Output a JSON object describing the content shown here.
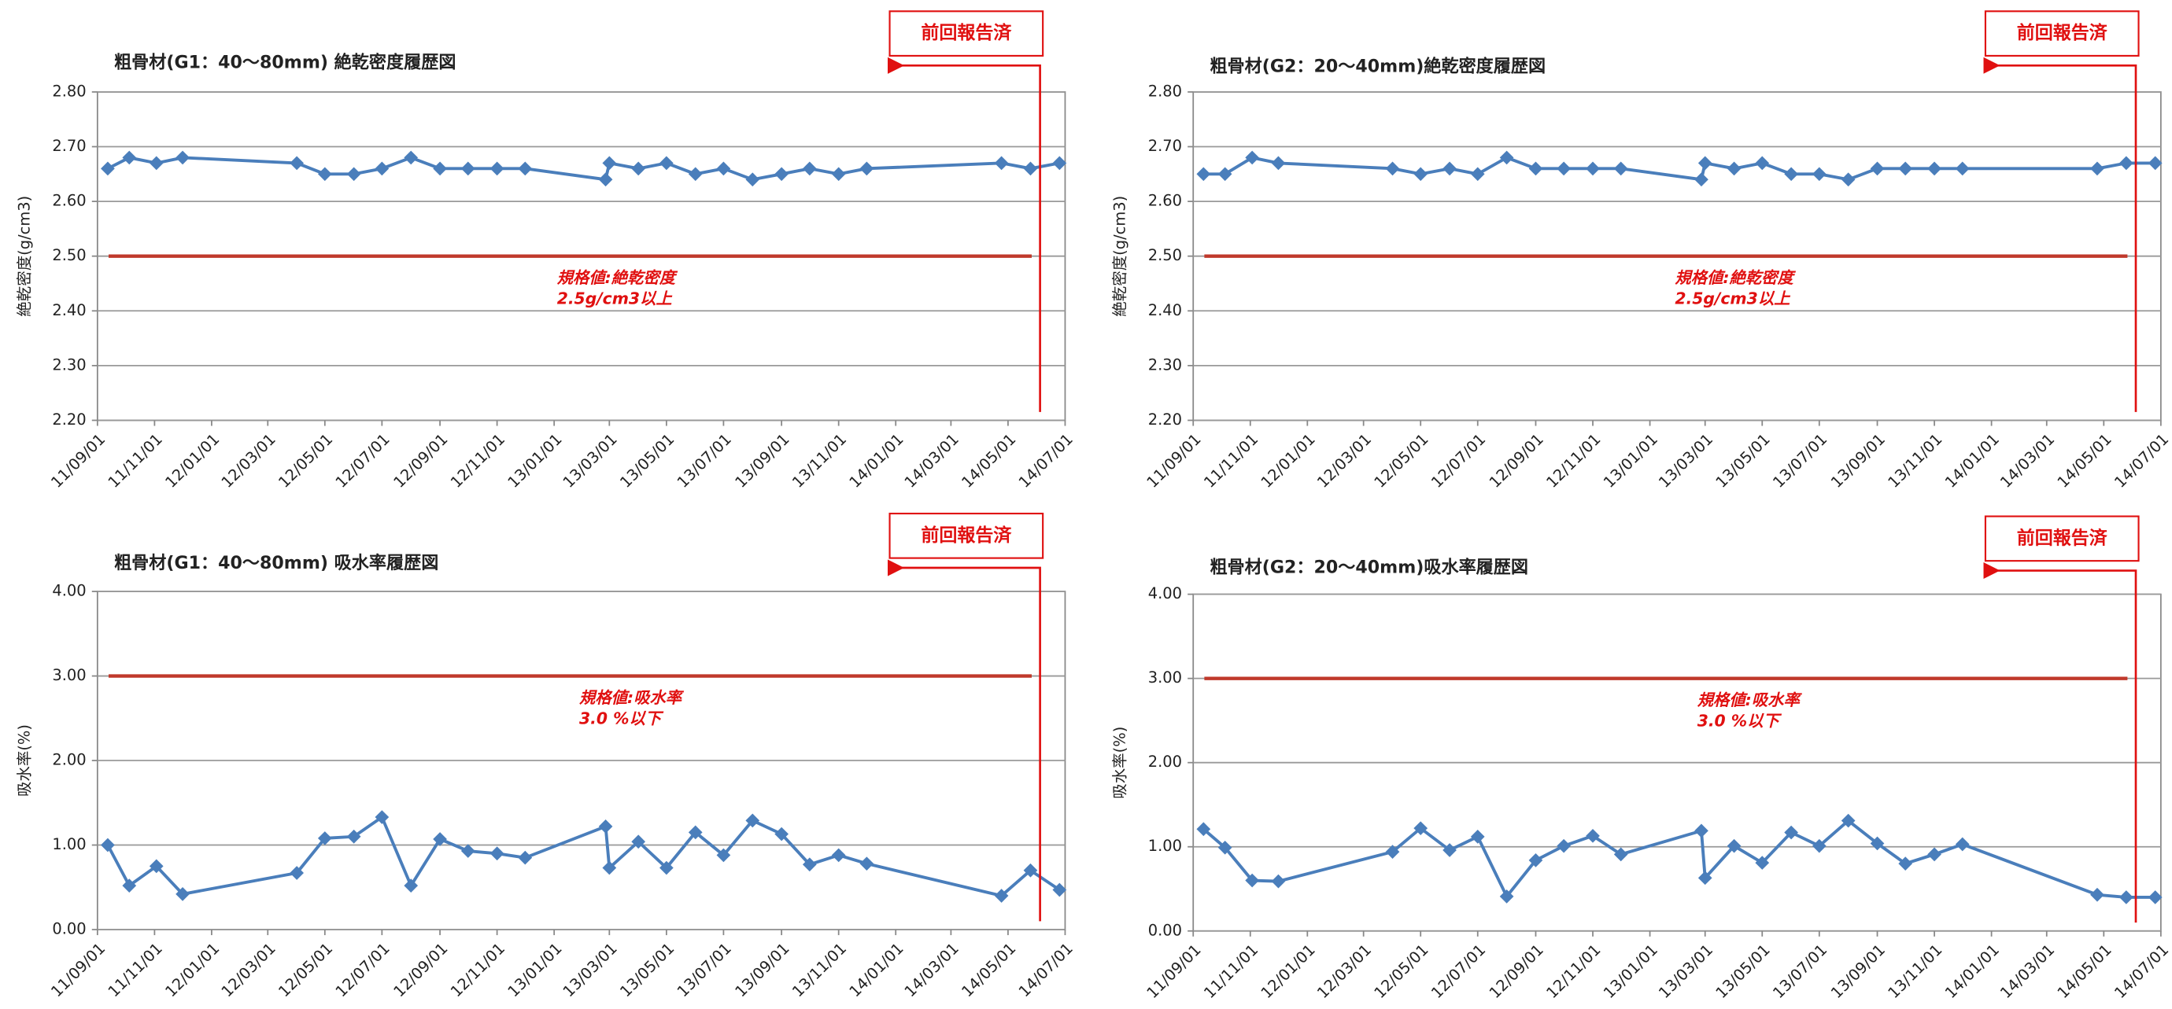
{
  "chart_data": [
    {
      "type": "line",
      "title": "粗骨材(G1：40～80mm) 絶乾密度履歴図",
      "ylabel": "絶乾密度(g/cm3)",
      "x": [
        "2011-09-12",
        "2011-10-05",
        "2011-11-03",
        "2011-12-01",
        "2012-04-01",
        "2012-05-01",
        "2012-06-01",
        "2012-07-01",
        "2012-08-01",
        "2012-09-01",
        "2012-10-01",
        "2012-11-01",
        "2012-12-01",
        "2013-02-25",
        "2013-03-01",
        "2013-04-01",
        "2013-05-01",
        "2013-06-01",
        "2013-07-01",
        "2013-08-01",
        "2013-09-01",
        "2013-10-01",
        "2013-11-01",
        "2013-12-01",
        "2014-04-24",
        "2014-05-25",
        "2014-06-25"
      ],
      "series": [
        {
          "color": "#4a7ebb",
          "values": [
            2.66,
            2.68,
            2.67,
            2.68,
            2.67,
            2.65,
            2.65,
            2.66,
            2.68,
            2.66,
            2.66,
            2.66,
            2.66,
            2.64,
            2.67,
            2.66,
            2.67,
            2.65,
            2.66,
            2.64,
            2.65,
            2.66,
            2.65,
            2.66,
            2.67,
            2.66,
            2.67
          ]
        }
      ],
      "xlim": [
        "2011-09-01",
        "2014-07-01"
      ],
      "xticks": [
        {
          "value": "2011-09-01",
          "label": "11/09/01"
        },
        {
          "value": "2011-11-01",
          "label": "11/11/01"
        },
        {
          "value": "2012-01-01",
          "label": "12/01/01"
        },
        {
          "value": "2012-03-01",
          "label": "12/03/01"
        },
        {
          "value": "2012-05-01",
          "label": "12/05/01"
        },
        {
          "value": "2012-07-01",
          "label": "12/07/01"
        },
        {
          "value": "2012-09-01",
          "label": "12/09/01"
        },
        {
          "value": "2012-11-01",
          "label": "12/11/01"
        },
        {
          "value": "2013-01-01",
          "label": "13/01/01"
        },
        {
          "value": "2013-03-01",
          "label": "13/03/01"
        },
        {
          "value": "2013-05-01",
          "label": "13/05/01"
        },
        {
          "value": "2013-07-01",
          "label": "13/07/01"
        },
        {
          "value": "2013-09-01",
          "label": "13/09/01"
        },
        {
          "value": "2013-11-01",
          "label": "13/11/01"
        },
        {
          "value": "2014-01-01",
          "label": "14/01/01"
        },
        {
          "value": "2014-03-01",
          "label": "14/03/01"
        },
        {
          "value": "2014-05-01",
          "label": "14/05/01"
        },
        {
          "value": "2014-07-01",
          "label": "14/07/01"
        }
      ],
      "ylim": [
        2.2,
        2.8
      ],
      "yticks": [
        {
          "value": 2.2,
          "label": "2.20"
        },
        {
          "value": 2.3,
          "label": "2.30"
        },
        {
          "value": 2.4,
          "label": "2.40"
        },
        {
          "value": 2.5,
          "label": "2.50"
        },
        {
          "value": 2.6,
          "label": "2.60"
        },
        {
          "value": 2.7,
          "label": "2.70"
        },
        {
          "value": 2.8,
          "label": "2.80"
        }
      ],
      "grid": true,
      "reference_line": {
        "value": 2.5,
        "color": "#c0392b",
        "label": [
          "規格値:絶乾密度",
          "2.5g/cm3以上"
        ]
      },
      "annotation": "前回報告済"
    },
    {
      "type": "line",
      "title": "粗骨材(G2：20～40mm)絶乾密度履歴図",
      "ylabel": "絶乾密度(g/cm3)",
      "x": [
        "2011-09-12",
        "2011-10-05",
        "2011-11-03",
        "2011-12-01",
        "2012-04-01",
        "2012-05-01",
        "2012-06-01",
        "2012-07-01",
        "2012-08-01",
        "2012-09-01",
        "2012-10-01",
        "2012-11-01",
        "2012-12-01",
        "2013-02-25",
        "2013-03-01",
        "2013-04-01",
        "2013-05-01",
        "2013-06-01",
        "2013-07-01",
        "2013-08-01",
        "2013-09-01",
        "2013-10-01",
        "2013-11-01",
        "2013-12-01",
        "2014-04-24",
        "2014-05-25",
        "2014-06-25"
      ],
      "series": [
        {
          "color": "#4a7ebb",
          "values": [
            2.65,
            2.65,
            2.68,
            2.67,
            2.66,
            2.65,
            2.66,
            2.65,
            2.68,
            2.66,
            2.66,
            2.66,
            2.66,
            2.64,
            2.67,
            2.66,
            2.67,
            2.65,
            2.65,
            2.64,
            2.66,
            2.66,
            2.66,
            2.66,
            2.66,
            2.67,
            2.67
          ]
        }
      ],
      "xlim": [
        "2011-09-01",
        "2014-07-01"
      ],
      "xticks": [
        {
          "value": "2011-09-01",
          "label": "11/09/01"
        },
        {
          "value": "2011-11-01",
          "label": "11/11/01"
        },
        {
          "value": "2012-01-01",
          "label": "12/01/01"
        },
        {
          "value": "2012-03-01",
          "label": "12/03/01"
        },
        {
          "value": "2012-05-01",
          "label": "12/05/01"
        },
        {
          "value": "2012-07-01",
          "label": "12/07/01"
        },
        {
          "value": "2012-09-01",
          "label": "12/09/01"
        },
        {
          "value": "2012-11-01",
          "label": "12/11/01"
        },
        {
          "value": "2013-01-01",
          "label": "13/01/01"
        },
        {
          "value": "2013-03-01",
          "label": "13/03/01"
        },
        {
          "value": "2013-05-01",
          "label": "13/05/01"
        },
        {
          "value": "2013-07-01",
          "label": "13/07/01"
        },
        {
          "value": "2013-09-01",
          "label": "13/09/01"
        },
        {
          "value": "2013-11-01",
          "label": "13/11/01"
        },
        {
          "value": "2014-01-01",
          "label": "14/01/01"
        },
        {
          "value": "2014-03-01",
          "label": "14/03/01"
        },
        {
          "value": "2014-05-01",
          "label": "14/05/01"
        },
        {
          "value": "2014-07-01",
          "label": "14/07/01"
        }
      ],
      "ylim": [
        2.2,
        2.8
      ],
      "yticks": [
        {
          "value": 2.2,
          "label": "2.20"
        },
        {
          "value": 2.3,
          "label": "2.30"
        },
        {
          "value": 2.4,
          "label": "2.40"
        },
        {
          "value": 2.5,
          "label": "2.50"
        },
        {
          "value": 2.6,
          "label": "2.60"
        },
        {
          "value": 2.7,
          "label": "2.70"
        },
        {
          "value": 2.8,
          "label": "2.80"
        }
      ],
      "grid": true,
      "reference_line": {
        "value": 2.5,
        "color": "#c0392b",
        "label": [
          "規格値:絶乾密度",
          "2.5g/cm3以上"
        ]
      },
      "annotation": "前回報告済"
    },
    {
      "type": "line",
      "title": "粗骨材(G1：40～80mm) 吸水率履歴図",
      "ylabel": "吸水率(%)",
      "x": [
        "2011-09-12",
        "2011-10-05",
        "2011-11-03",
        "2011-12-01",
        "2012-04-01",
        "2012-05-01",
        "2012-06-01",
        "2012-07-01",
        "2012-08-01",
        "2012-09-01",
        "2012-10-01",
        "2012-11-01",
        "2012-12-01",
        "2013-02-25",
        "2013-03-01",
        "2013-04-01",
        "2013-05-01",
        "2013-06-01",
        "2013-07-01",
        "2013-08-01",
        "2013-09-01",
        "2013-10-01",
        "2013-11-01",
        "2013-12-01",
        "2014-04-24",
        "2014-05-25",
        "2014-06-25"
      ],
      "series": [
        {
          "color": "#4a7ebb",
          "values": [
            1.0,
            0.52,
            0.75,
            0.42,
            0.67,
            1.08,
            1.1,
            1.33,
            0.52,
            1.07,
            0.93,
            0.9,
            0.85,
            1.22,
            0.73,
            1.04,
            0.73,
            1.15,
            0.88,
            1.29,
            1.13,
            0.77,
            0.88,
            0.78,
            0.4,
            0.7,
            0.47
          ]
        }
      ],
      "xlim": [
        "2011-09-01",
        "2014-07-01"
      ],
      "xticks": [
        {
          "value": "2011-09-01",
          "label": "11/09/01"
        },
        {
          "value": "2011-11-01",
          "label": "11/11/01"
        },
        {
          "value": "2012-01-01",
          "label": "12/01/01"
        },
        {
          "value": "2012-03-01",
          "label": "12/03/01"
        },
        {
          "value": "2012-05-01",
          "label": "12/05/01"
        },
        {
          "value": "2012-07-01",
          "label": "12/07/01"
        },
        {
          "value": "2012-09-01",
          "label": "12/09/01"
        },
        {
          "value": "2012-11-01",
          "label": "12/11/01"
        },
        {
          "value": "2013-01-01",
          "label": "13/01/01"
        },
        {
          "value": "2013-03-01",
          "label": "13/03/01"
        },
        {
          "value": "2013-05-01",
          "label": "13/05/01"
        },
        {
          "value": "2013-07-01",
          "label": "13/07/01"
        },
        {
          "value": "2013-09-01",
          "label": "13/09/01"
        },
        {
          "value": "2013-11-01",
          "label": "13/11/01"
        },
        {
          "value": "2014-01-01",
          "label": "14/01/01"
        },
        {
          "value": "2014-03-01",
          "label": "14/03/01"
        },
        {
          "value": "2014-05-01",
          "label": "14/05/01"
        },
        {
          "value": "2014-07-01",
          "label": "14/07/01"
        }
      ],
      "ylim": [
        0,
        4
      ],
      "yticks": [
        {
          "value": 0,
          "label": "0.00"
        },
        {
          "value": 1,
          "label": "1.00"
        },
        {
          "value": 2,
          "label": "2.00"
        },
        {
          "value": 3,
          "label": "3.00"
        },
        {
          "value": 4,
          "label": "4.00"
        }
      ],
      "grid": true,
      "reference_line": {
        "value": 3,
        "color": "#c0392b",
        "label": [
          "規格値:吸水率",
          "3.0  %以下"
        ]
      },
      "annotation": "前回報告済"
    },
    {
      "type": "line",
      "title": "粗骨材(G2：20～40mm)吸水率履歴図",
      "ylabel": "吸水率(%)",
      "x": [
        "2011-09-12",
        "2011-10-05",
        "2011-11-03",
        "2011-12-01",
        "2012-04-01",
        "2012-05-01",
        "2012-06-01",
        "2012-07-01",
        "2012-08-01",
        "2012-09-01",
        "2012-10-01",
        "2012-11-01",
        "2012-12-01",
        "2013-02-25",
        "2013-03-01",
        "2013-04-01",
        "2013-05-01",
        "2013-06-01",
        "2013-07-01",
        "2013-08-01",
        "2013-09-01",
        "2013-10-01",
        "2013-11-01",
        "2013-12-01",
        "2014-04-24",
        "2014-05-25",
        "2014-06-25"
      ],
      "series": [
        {
          "color": "#4a7ebb",
          "values": [
            1.21,
            0.99,
            0.6,
            0.59,
            0.94,
            1.22,
            0.96,
            1.12,
            0.41,
            0.84,
            1.01,
            1.13,
            0.91,
            1.19,
            0.63,
            1.01,
            0.81,
            1.17,
            1.01,
            1.31,
            1.04,
            0.8,
            0.91,
            1.03,
            0.43,
            0.4,
            0.4
          ]
        }
      ],
      "xlim": [
        "2011-09-01",
        "2014-07-01"
      ],
      "xticks": [
        {
          "value": "2011-09-01",
          "label": "11/09/01"
        },
        {
          "value": "2011-11-01",
          "label": "11/11/01"
        },
        {
          "value": "2012-01-01",
          "label": "12/01/01"
        },
        {
          "value": "2012-03-01",
          "label": "12/03/01"
        },
        {
          "value": "2012-05-01",
          "label": "12/05/01"
        },
        {
          "value": "2012-07-01",
          "label": "12/07/01"
        },
        {
          "value": "2012-09-01",
          "label": "12/09/01"
        },
        {
          "value": "2012-11-01",
          "label": "12/11/01"
        },
        {
          "value": "2013-01-01",
          "label": "13/01/01"
        },
        {
          "value": "2013-03-01",
          "label": "13/03/01"
        },
        {
          "value": "2013-05-01",
          "label": "13/05/01"
        },
        {
          "value": "2013-07-01",
          "label": "13/07/01"
        },
        {
          "value": "2013-09-01",
          "label": "13/09/01"
        },
        {
          "value": "2013-11-01",
          "label": "13/11/01"
        },
        {
          "value": "2014-01-01",
          "label": "14/01/01"
        },
        {
          "value": "2014-03-01",
          "label": "14/03/01"
        },
        {
          "value": "2014-05-01",
          "label": "14/05/01"
        },
        {
          "value": "2014-07-01",
          "label": "14/07/01"
        }
      ],
      "ylim": [
        0,
        4
      ],
      "yticks": [
        {
          "value": 0,
          "label": "0.00"
        },
        {
          "value": 1,
          "label": "1.00"
        },
        {
          "value": 2,
          "label": "2.00"
        },
        {
          "value": 3,
          "label": "3.00"
        },
        {
          "value": 4,
          "label": "4.00"
        }
      ],
      "grid": true,
      "reference_line": {
        "value": 3,
        "color": "#c0392b",
        "label": [
          "規格値:吸水率",
          "3.0  %以下"
        ]
      },
      "annotation": "前回報告済"
    }
  ]
}
